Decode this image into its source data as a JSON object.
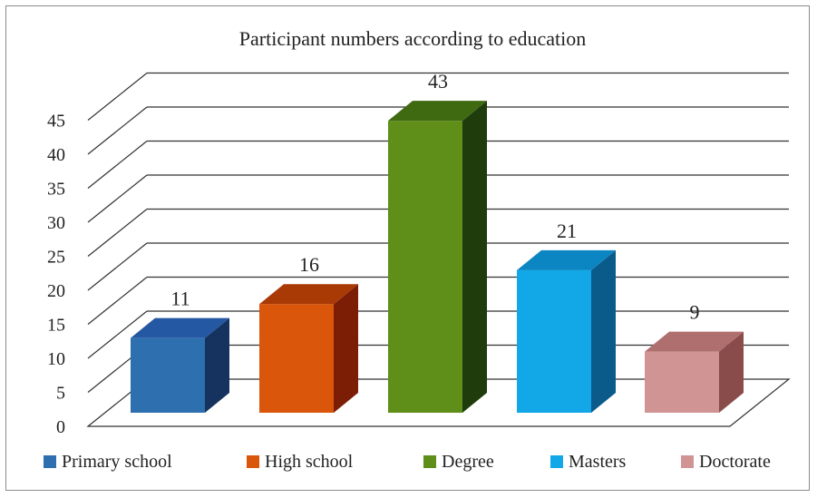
{
  "chart_data": {
    "type": "bar",
    "title": "Participant numbers according to education",
    "categories": [
      "Primary school",
      "High school",
      "Degree",
      "Masters",
      "Doctorate"
    ],
    "values": [
      11,
      16,
      43,
      21,
      9
    ],
    "ylim": [
      0,
      45
    ],
    "yticks": [
      0,
      5,
      10,
      15,
      20,
      25,
      30,
      35,
      40,
      45
    ],
    "grid": true,
    "legend": "bottom",
    "colors": {
      "front": [
        "#2e6fb0",
        "#d9560b",
        "#5f8e19",
        "#12a7e6",
        "#d19495"
      ],
      "side": [
        "#16325f",
        "#7c1e06",
        "#1f3d0c",
        "#0a5a8a",
        "#8a4b4b"
      ],
      "top": [
        "#2558a3",
        "#a93a06",
        "#3f6a12",
        "#0b86c3",
        "#b06f6f"
      ]
    }
  }
}
